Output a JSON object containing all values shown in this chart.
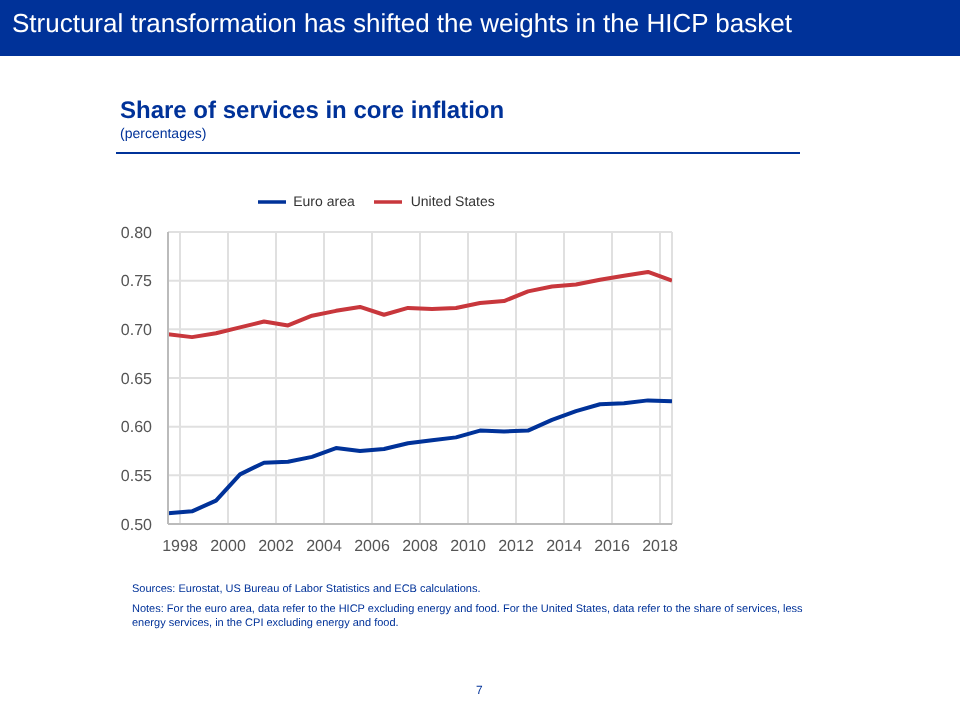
{
  "chart_data": {
    "type": "line",
    "title": "Share of services in core inflation",
    "subtitle": "(percentages)",
    "annotations": [
      "Structural transformation has shifted the weights in the HICP basket",
      "Sources: Eurostat, US Bureau of Labor Statistics and ECB calculations.",
      "Notes: For the euro area, data refer to the HICP excluding energy and food. For the United States, data refer to the share of services, less energy services, in the CPI excluding energy and food.",
      "7"
    ],
    "x": [
      1997.5,
      1998.5,
      1999.5,
      2000.5,
      2001.5,
      2002.5,
      2003.5,
      2004.5,
      2005.5,
      2006.5,
      2007.5,
      2008.5,
      2009.5,
      2010.5,
      2011.5,
      2012.5,
      2013.5,
      2014.5,
      2015.5,
      2016.5,
      2017.5,
      2018.5
    ],
    "series": [
      {
        "name": "Euro area",
        "color": "#003299",
        "values": [
          0.511,
          0.513,
          0.524,
          0.551,
          0.563,
          0.564,
          0.569,
          0.578,
          0.575,
          0.577,
          0.583,
          0.586,
          0.589,
          0.596,
          0.595,
          0.596,
          0.607,
          0.616,
          0.623,
          0.624,
          0.627,
          0.626
        ]
      },
      {
        "name": "United States",
        "color": "#c8373c",
        "values": [
          0.695,
          0.692,
          0.696,
          0.702,
          0.708,
          0.704,
          0.714,
          0.719,
          0.723,
          0.715,
          0.722,
          0.721,
          0.722,
          0.727,
          0.729,
          0.739,
          0.744,
          0.746,
          0.751,
          0.755,
          0.759,
          0.75
        ]
      }
    ],
    "xlim": [
      1997.5,
      2018.5
    ],
    "xticks": [
      1998,
      2000,
      2002,
      2004,
      2006,
      2008,
      2010,
      2012,
      2014,
      2016,
      2018
    ],
    "ylim": [
      0.5,
      0.8
    ],
    "yticks": [
      {
        "value": 0.5,
        "label": "0.50"
      },
      {
        "value": 0.55,
        "label": "0.55"
      },
      {
        "value": 0.6,
        "label": "0.60"
      },
      {
        "value": 0.65,
        "label": "0.65"
      },
      {
        "value": 0.7,
        "label": "0.70"
      },
      {
        "value": 0.75,
        "label": "0.75"
      },
      {
        "value": 0.8,
        "label": "0.80"
      }
    ],
    "grid": true,
    "legend": "top",
    "marker": "none",
    "line_style": "solid"
  }
}
